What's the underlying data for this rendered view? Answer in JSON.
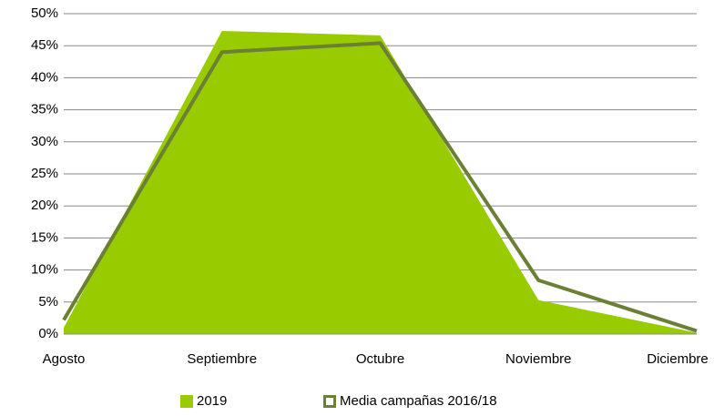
{
  "chart_data": {
    "type": "area",
    "categories": [
      "Agosto",
      "Septiembre",
      "Octubre",
      "Noviembre",
      "Diciembre"
    ],
    "series": [
      {
        "name": "2019",
        "type": "area",
        "color": "#99cc00",
        "values": [
          1,
          47.3,
          46.6,
          5.3,
          0.2
        ]
      },
      {
        "name": "Media campañas 2016/18",
        "type": "line",
        "color": "#6b7f35",
        "values": [
          2.2,
          44,
          45.4,
          8.4,
          0.5
        ]
      }
    ],
    "ylim": [
      0,
      50
    ],
    "yticks": [
      {
        "value": 0,
        "label": "0%"
      },
      {
        "value": 5,
        "label": "5%"
      },
      {
        "value": 10,
        "label": "10%"
      },
      {
        "value": 15,
        "label": "15%"
      },
      {
        "value": 20,
        "label": "20%"
      },
      {
        "value": 25,
        "label": "25%"
      },
      {
        "value": 30,
        "label": "30%"
      },
      {
        "value": 35,
        "label": "35%"
      },
      {
        "value": 40,
        "label": "40%"
      },
      {
        "value": 45,
        "label": "45%"
      },
      {
        "value": 50,
        "label": "50%"
      }
    ],
    "grid": true,
    "legend": "bottom"
  }
}
